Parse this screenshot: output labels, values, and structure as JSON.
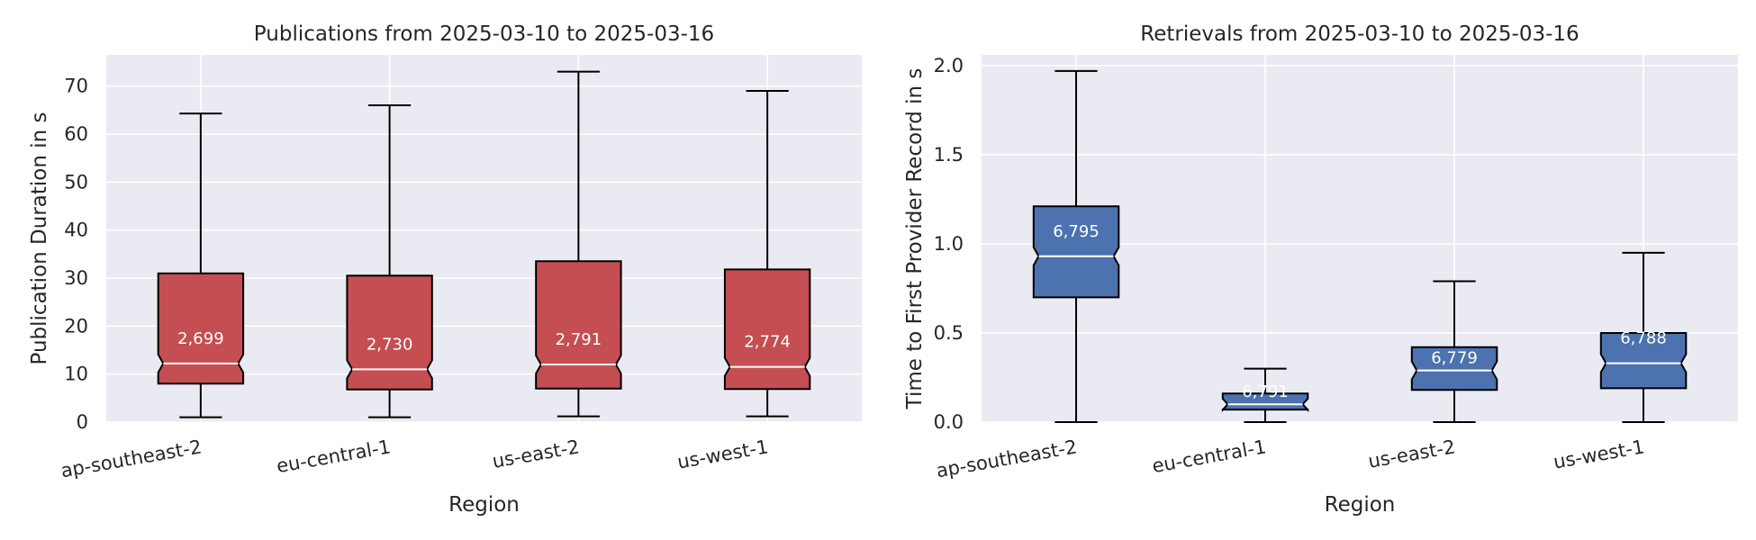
{
  "figure": {
    "style": {
      "plot_background": "#eaeaf2",
      "grid_color": "#ffffff",
      "publication_color": "#c44e52",
      "retrieval_color": "#4c72b0",
      "median_color": "#ffffff",
      "edge_color": "#000000"
    }
  },
  "chart_data": [
    {
      "type": "box",
      "title": "Publications from 2025-03-10 to 2025-03-16",
      "xlabel": "Region",
      "ylabel": "Publication Duration in s",
      "categories": [
        "ap-southeast-2",
        "eu-central-1",
        "us-east-2",
        "us-west-1"
      ],
      "notched": true,
      "ylim": [
        0,
        76.5
      ],
      "yticks": [
        0,
        10,
        20,
        30,
        40,
        50,
        60,
        70
      ],
      "grid": true,
      "boxes": [
        {
          "whislo": 1.0,
          "q1": 8.0,
          "med": 12.2,
          "q3": 31.0,
          "whishi": 64.3,
          "count_label": "2,699"
        },
        {
          "whislo": 1.0,
          "q1": 6.8,
          "med": 11.0,
          "q3": 30.5,
          "whishi": 66.0,
          "count_label": "2,730"
        },
        {
          "whislo": 1.2,
          "q1": 7.0,
          "med": 12.0,
          "q3": 33.5,
          "whishi": 73.0,
          "count_label": "2,791"
        },
        {
          "whislo": 1.2,
          "q1": 6.9,
          "med": 11.5,
          "q3": 31.8,
          "whishi": 69.0,
          "count_label": "2,774"
        }
      ]
    },
    {
      "type": "box",
      "title": "Retrievals from 2025-03-10 to 2025-03-16",
      "xlabel": "Region",
      "ylabel": "Time to First Provider Record in s",
      "categories": [
        "ap-southeast-2",
        "eu-central-1",
        "us-east-2",
        "us-west-1"
      ],
      "notched": true,
      "ylim": [
        0,
        2.06
      ],
      "yticks": [
        0.0,
        0.5,
        1.0,
        1.5,
        2.0
      ],
      "grid": true,
      "boxes": [
        {
          "whislo": 0.0,
          "q1": 0.7,
          "med": 0.93,
          "q3": 1.21,
          "whishi": 1.97,
          "count_label": "6,795"
        },
        {
          "whislo": 0.0,
          "q1": 0.07,
          "med": 0.1,
          "q3": 0.16,
          "whishi": 0.3,
          "count_label": "6,791"
        },
        {
          "whislo": 0.0,
          "q1": 0.18,
          "med": 0.29,
          "q3": 0.42,
          "whishi": 0.79,
          "count_label": "6,779"
        },
        {
          "whislo": 0.0,
          "q1": 0.19,
          "med": 0.33,
          "q3": 0.5,
          "whishi": 0.95,
          "count_label": "6,788"
        }
      ]
    }
  ]
}
